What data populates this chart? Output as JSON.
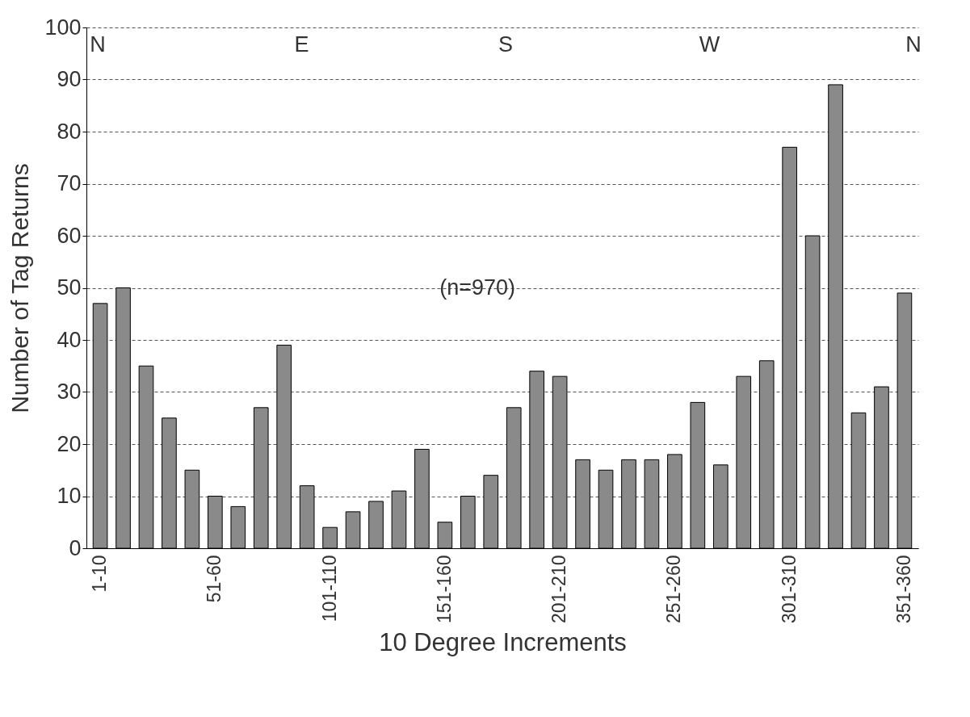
{
  "chart_data": {
    "type": "bar",
    "xlabel": "10 Degree Increments",
    "ylabel": "Number of Tag Returns",
    "categories": [
      "1-10",
      null,
      null,
      null,
      null,
      "51-60",
      null,
      null,
      null,
      null,
      "101-110",
      null,
      null,
      null,
      null,
      "151-160",
      null,
      null,
      null,
      null,
      "201-210",
      null,
      null,
      null,
      null,
      "251-260",
      null,
      null,
      null,
      null,
      "301-310",
      null,
      null,
      null,
      null,
      "351-360"
    ],
    "values": [
      47,
      50,
      35,
      25,
      15,
      10,
      8,
      27,
      39,
      12,
      4,
      7,
      9,
      11,
      19,
      5,
      10,
      14,
      27,
      34,
      33,
      17,
      15,
      17,
      17,
      18,
      28,
      16,
      33,
      36,
      77,
      60,
      89,
      26,
      31,
      49
    ],
    "color": "#8a8a8a",
    "ylim": [
      0,
      100
    ],
    "yticks": [
      0,
      10,
      20,
      30,
      40,
      50,
      60,
      70,
      80,
      90,
      100
    ],
    "grid": "y",
    "annotations": [
      "N",
      "E",
      "S",
      "W",
      "N",
      "(n=970)"
    ]
  }
}
